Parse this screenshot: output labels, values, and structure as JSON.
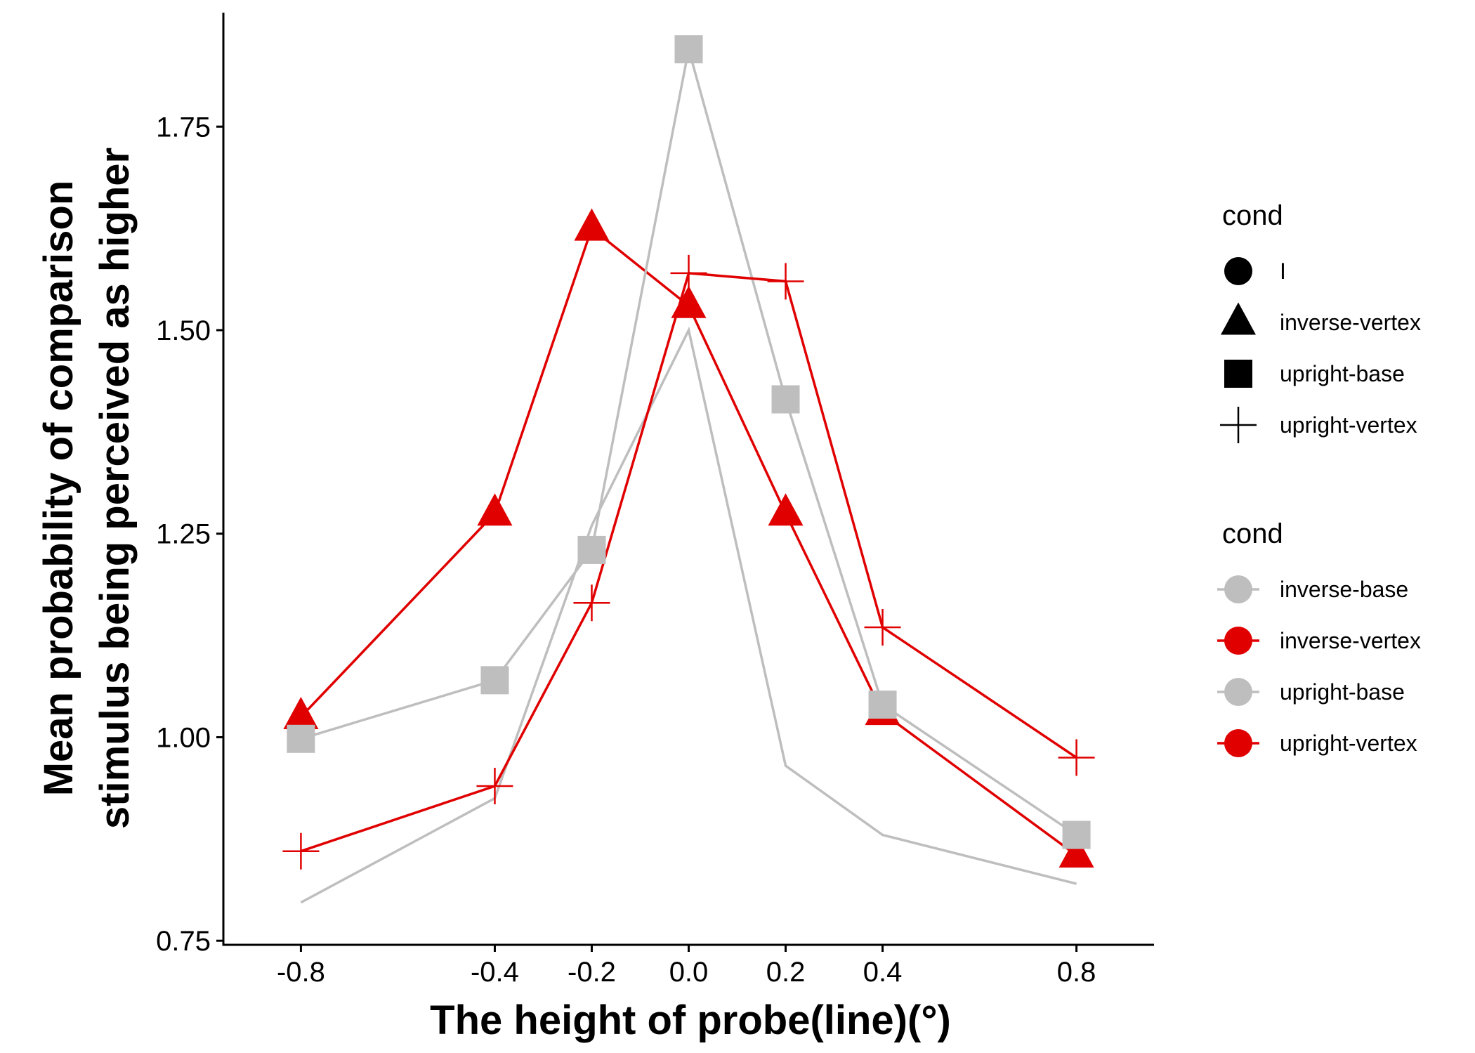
{
  "chart_data": {
    "type": "line",
    "xlabel": "The height of probe(line)(°)",
    "ylabel": [
      "Mean probability of comparison",
      "stimulus being perceived as higher"
    ],
    "x": [
      -0.8,
      -0.4,
      -0.2,
      0.0,
      0.2,
      0.4,
      0.8
    ],
    "x_tick_labels": [
      "-0.8",
      "-0.4",
      "-0.2",
      "0.0",
      "0.2",
      "0.4",
      "0.8"
    ],
    "y_ticks": [
      0.75,
      1.0,
      1.25,
      1.5,
      1.75
    ],
    "y_tick_labels": [
      "0.75",
      "1.00",
      "1.25",
      "1.50",
      "1.75"
    ],
    "xlim": [
      -0.96,
      0.96
    ],
    "ylim": [
      0.745,
      1.89
    ],
    "series": [
      {
        "name": "inverse-base",
        "color": "#bebebe",
        "shape": "none",
        "values": [
          0.797,
          0.925,
          1.26,
          1.5,
          0.965,
          0.88,
          0.82
        ]
      },
      {
        "name": "inverse-vertex",
        "color": "#e00000",
        "shape": "triangle",
        "values": [
          1.025,
          1.275,
          1.625,
          1.53,
          1.275,
          1.03,
          0.855
        ]
      },
      {
        "name": "upright-base",
        "color": "#bebebe",
        "shape": "square",
        "values": [
          0.998,
          1.07,
          1.23,
          1.845,
          1.415,
          1.04,
          0.88
        ]
      },
      {
        "name": "upright-vertex",
        "color": "#e00000",
        "shape": "plus",
        "values": [
          0.86,
          0.94,
          1.165,
          1.57,
          1.56,
          1.135,
          0.975
        ]
      }
    ],
    "legend_shape": {
      "title": "cond",
      "items": [
        {
          "label": "I",
          "shape": "circle"
        },
        {
          "label": "inverse-vertex",
          "shape": "triangle"
        },
        {
          "label": "upright-base",
          "shape": "square"
        },
        {
          "label": "upright-vertex",
          "shape": "plus"
        }
      ]
    },
    "legend_color": {
      "title": "cond",
      "items": [
        {
          "label": "inverse-base",
          "color": "#bebebe"
        },
        {
          "label": "inverse-vertex",
          "color": "#e00000"
        },
        {
          "label": "upright-base",
          "color": "#bebebe"
        },
        {
          "label": "upright-vertex",
          "color": "#e00000"
        }
      ]
    },
    "legend_position": "right",
    "grid": false
  }
}
